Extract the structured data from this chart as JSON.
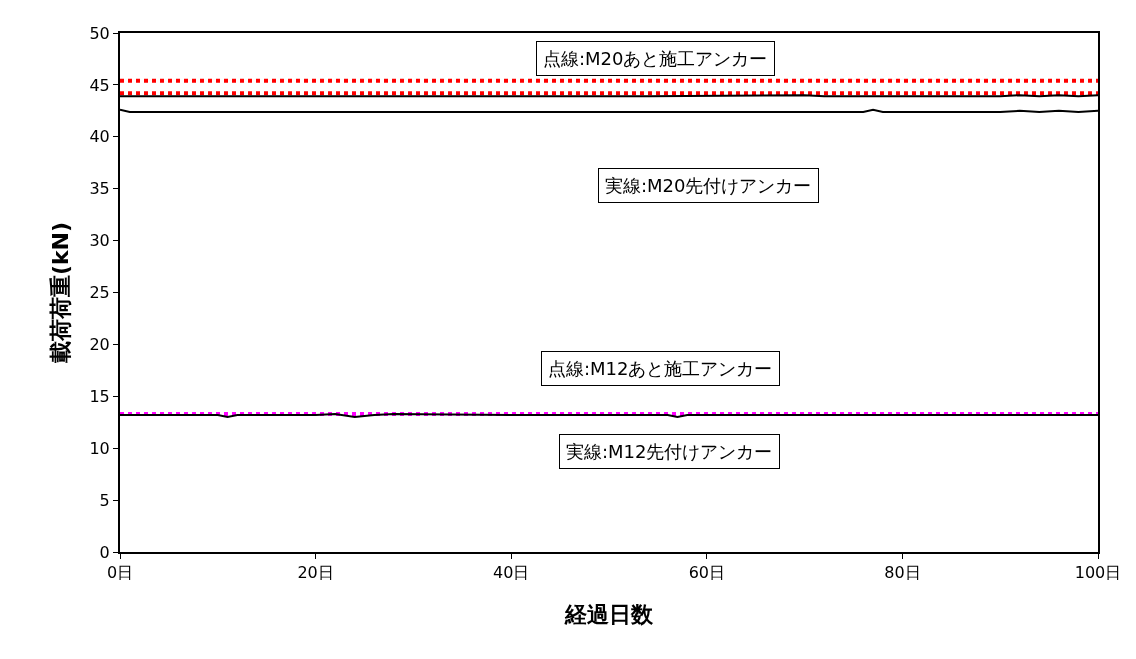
{
  "chart_data": {
    "type": "line",
    "xlabel": "経過日数",
    "ylabel": "載荷荷重(kN)",
    "xlim": [
      0,
      100
    ],
    "ylim": [
      0,
      50
    ],
    "xticks": [
      {
        "value": 0,
        "label": "0日"
      },
      {
        "value": 20,
        "label": "20日"
      },
      {
        "value": 40,
        "label": "40日"
      },
      {
        "value": 60,
        "label": "60日"
      },
      {
        "value": 80,
        "label": "80日"
      },
      {
        "value": 100,
        "label": "100日"
      }
    ],
    "yticks": [
      0,
      5,
      10,
      15,
      20,
      25,
      30,
      35,
      40,
      45,
      50
    ],
    "marker": "none",
    "series": [
      {
        "color": "#ff0000",
        "line_style": "dotted",
        "x": [
          0,
          100
        ],
        "values": [
          45.4,
          45.4
        ]
      },
      {
        "color": "#ff0000",
        "line_style": "dotted",
        "x": [
          0,
          100
        ],
        "values": [
          44.2,
          44.2
        ]
      },
      {
        "color": "#000000",
        "line_style": "solid",
        "x": [
          0,
          54,
          70,
          72,
          90,
          92,
          94,
          96,
          98,
          100
        ],
        "values": [
          43.9,
          43.9,
          44.0,
          43.9,
          43.9,
          44.0,
          43.9,
          44.0,
          43.9,
          44.0
        ]
      },
      {
        "color": "#000000",
        "line_style": "solid",
        "x": [
          0,
          1,
          76,
          77,
          78,
          90,
          92,
          94,
          96,
          98,
          100
        ],
        "values": [
          42.6,
          42.4,
          42.4,
          42.6,
          42.4,
          42.4,
          42.5,
          42.4,
          42.5,
          42.4,
          42.5
        ]
      },
      {
        "color": "#ff00ff",
        "line_style": "dotted",
        "x": [
          0,
          100
        ],
        "values": [
          13.3,
          13.3
        ]
      },
      {
        "color": "#000000",
        "line_style": "solid",
        "x": [
          0,
          10,
          11,
          12,
          20,
          22,
          24,
          26,
          28,
          40,
          56,
          57,
          58,
          100
        ],
        "values": [
          13.2,
          13.2,
          13.0,
          13.2,
          13.2,
          13.3,
          13.0,
          13.2,
          13.3,
          13.2,
          13.2,
          13.0,
          13.2,
          13.2
        ]
      }
    ],
    "annotations": [
      "点線:M20あと施工アンカー",
      "実線:M20先付けアンカー",
      "点線:M12あと施工アンカー",
      "実線:M12先付けアンカー"
    ]
  }
}
